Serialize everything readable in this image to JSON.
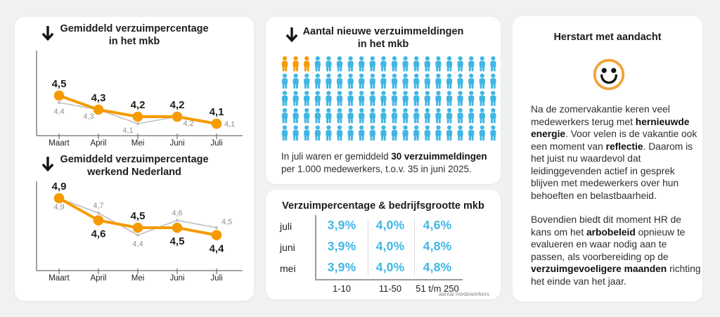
{
  "colors": {
    "orange": "#f59b00",
    "blue": "#41b6e4",
    "gray_line": "#bfbfbf",
    "gray_label": "#8f8f8f",
    "axis": "#6e6e6e",
    "smiley_ring": "#f0a43c",
    "text_dark": "#1d1d1b"
  },
  "icons": {
    "trend": "down-arrow",
    "person": "person-pictogram",
    "smiley": "smiley-face"
  },
  "chart_data": [
    {
      "type": "line",
      "title_lines": [
        "Gemiddeld verzuimpercentage",
        "in het mkb"
      ],
      "categories": [
        "Maart",
        "April",
        "Mei",
        "Juni",
        "Juli"
      ],
      "ylim": [
        4.0,
        4.7
      ],
      "grid": false,
      "legend": "none",
      "series": [
        {
          "color": "#f59b00",
          "values": [
            4.5,
            4.3,
            4.2,
            4.2,
            4.1
          ],
          "labels": [
            "4,5",
            "4,3",
            "4,2",
            "4,2",
            "4,1"
          ],
          "label_pos": [
            "above",
            "above",
            "above",
            "above",
            "above"
          ]
        },
        {
          "color": "#bfbfbf",
          "values": [
            4.4,
            4.3,
            4.1,
            4.2,
            4.1
          ],
          "labels": [
            "4,4",
            "4,3",
            "4,1",
            "4,2",
            "4,1"
          ],
          "label_pos": [
            "below",
            "below-left",
            "below-left",
            "below-right",
            "right"
          ]
        }
      ]
    },
    {
      "type": "line",
      "title_lines": [
        "Gemiddeld verzuimpercentage",
        "werkend Nederland"
      ],
      "categories": [
        "Maart",
        "April",
        "Mei",
        "Juni",
        "Juli"
      ],
      "ylim": [
        4.3,
        5.0
      ],
      "grid": false,
      "legend": "none",
      "series": [
        {
          "color": "#f59b00",
          "values": [
            4.9,
            4.6,
            4.5,
            4.5,
            4.4
          ],
          "labels": [
            "4,9",
            "4,6",
            "4,5",
            "4,5",
            "4,4"
          ],
          "label_pos": [
            "above",
            "below",
            "above",
            "below",
            "below"
          ]
        },
        {
          "color": "#bfbfbf",
          "values": [
            4.9,
            4.7,
            4.4,
            4.6,
            4.5
          ],
          "labels": [
            "4,9",
            "4,7",
            "4,4",
            "4,6",
            "4,5"
          ],
          "label_pos": [
            "below",
            "above",
            "below",
            "above",
            "above-right"
          ]
        }
      ]
    },
    {
      "type": "table",
      "title": "Verzuimpercentage & bedrijfsgrootte mkb",
      "row_labels": [
        "juli",
        "juni",
        "mei"
      ],
      "col_headers": [
        "1-10",
        "11-50",
        "51 t/m 250"
      ],
      "values": [
        [
          "3,9%",
          "4,0%",
          "4,6%"
        ],
        [
          "3,9%",
          "4,0%",
          "4,8%"
        ],
        [
          "3,9%",
          "4,0%",
          "4,8%"
        ]
      ],
      "axis_caption": "aantal medewerkers"
    }
  ],
  "reports": {
    "title_lines": [
      "Aantal nieuwe verzuimmeldingen",
      "in het mkb"
    ],
    "pictogram": {
      "total": 100,
      "per_row": 20,
      "highlighted": 3,
      "highlight_color": "#f59b00",
      "base_color": "#41b6e4"
    },
    "caption_segments": [
      {
        "t": "In juli waren er gemiddeld ",
        "b": false
      },
      {
        "t": "30 verzuimmeldingen",
        "b": true
      },
      {
        "t": " per 1.000 medewerkers, t.o.v. 35 in juni 2025.",
        "b": false
      }
    ]
  },
  "table": {
    "title": "Verzuimpercentage & bedrijfsgrootte mkb",
    "rows": [
      {
        "label": "juli",
        "values": [
          "3,9%",
          "4,0%",
          "4,6%"
        ]
      },
      {
        "label": "juni",
        "values": [
          "3,9%",
          "4,0%",
          "4,8%"
        ]
      },
      {
        "label": "mei",
        "values": [
          "3,9%",
          "4,0%",
          "4,8%"
        ]
      }
    ],
    "col_headers": [
      "1-10",
      "11-50",
      "51 t/m 250"
    ],
    "axis_caption": "aantal medewerkers",
    "value_color": "#41b6e4"
  },
  "article": {
    "title": "Herstart met aandacht",
    "paragraphs": [
      {
        "segments": [
          {
            "t": "Na de zomervakantie keren veel medewerkers terug met ",
            "b": false
          },
          {
            "t": "hernieuwde energie",
            "b": true
          },
          {
            "t": ". Voor velen is de vakantie ook een moment van ",
            "b": false
          },
          {
            "t": "reflectie",
            "b": true
          },
          {
            "t": ". Daarom is het juist nu waardevol dat leidinggevenden actief in gesprek blijven met medewerkers over hun behoeften en belastbaarheid.",
            "b": false
          }
        ]
      },
      {
        "segments": [
          {
            "t": "Bovendien biedt dit moment HR de kans om het ",
            "b": false
          },
          {
            "t": "arbobeleid",
            "b": true
          },
          {
            "t": " opnieuw te evalueren en waar nodig aan te passen, als voorbereiding op de ",
            "b": false
          },
          {
            "t": "verzuimgevoeligere maanden",
            "b": true
          },
          {
            "t": " richting het einde van het jaar.",
            "b": false
          }
        ]
      }
    ]
  }
}
